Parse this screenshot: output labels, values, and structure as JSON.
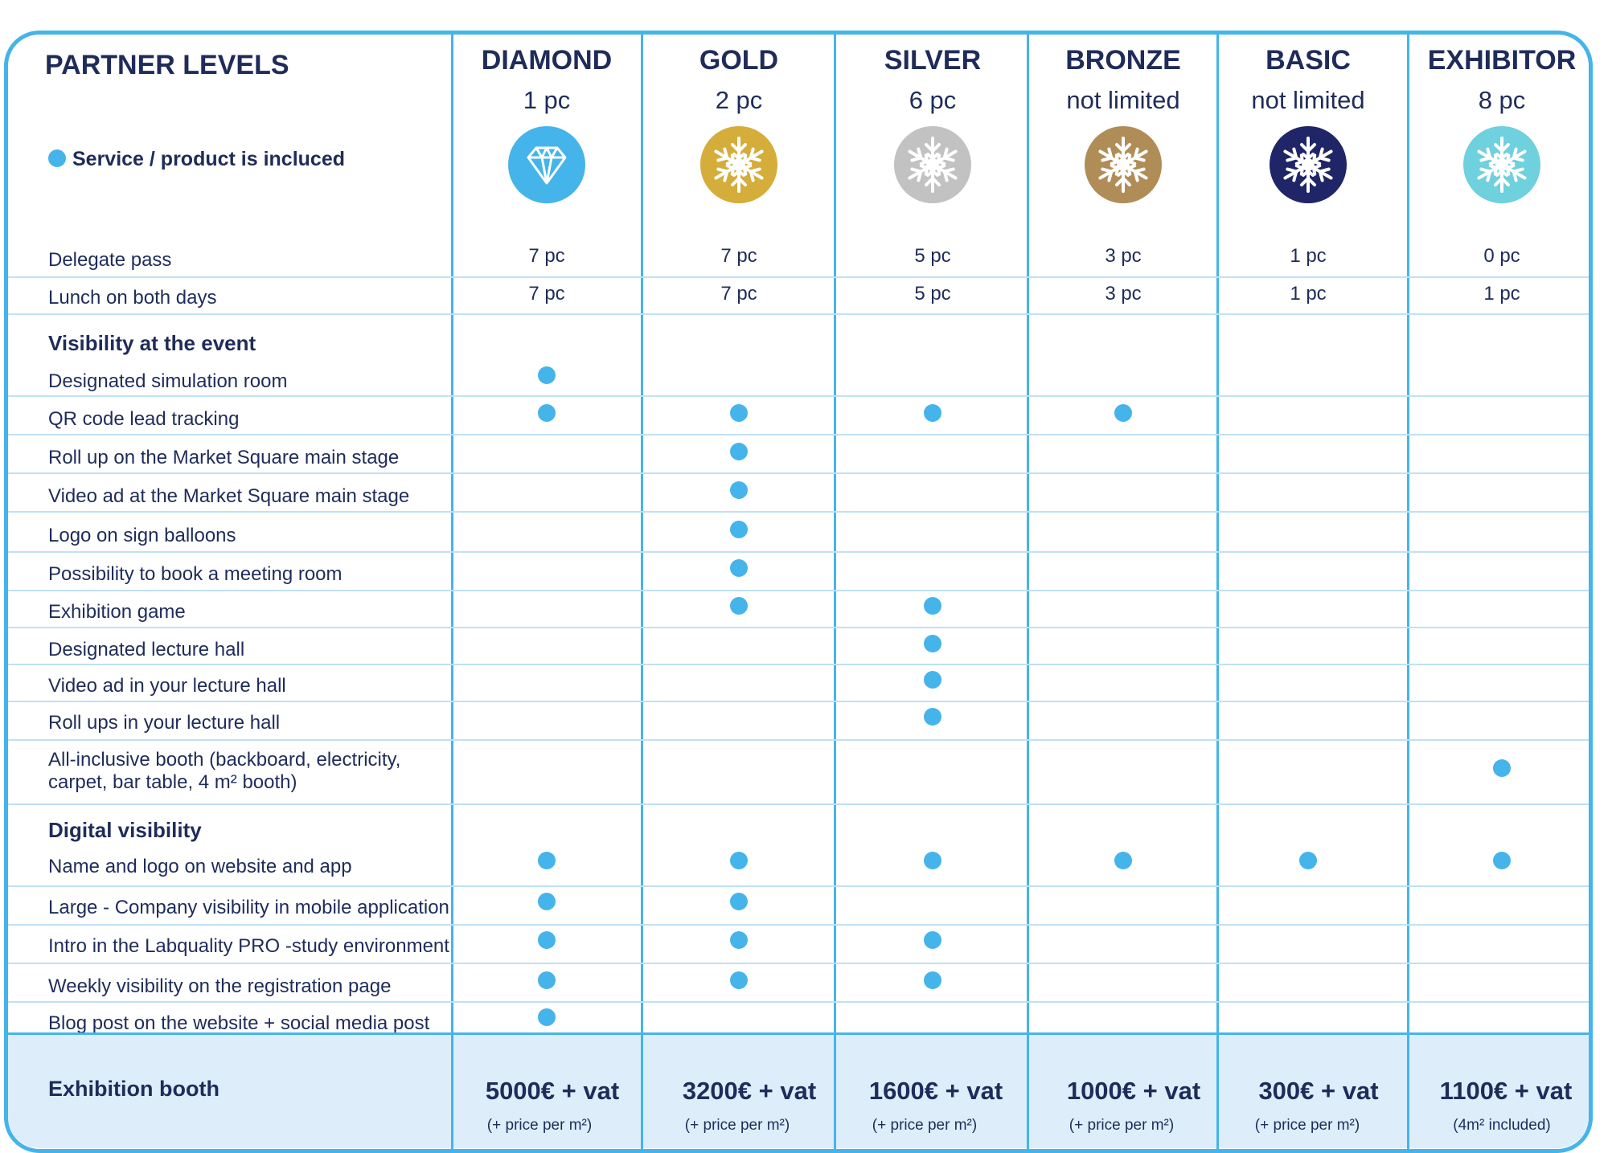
{
  "title": "PARTNER LEVELS",
  "legend": "Service / product is incluced",
  "colors": {
    "accent": "#45b4ea",
    "text": "#1f2c5a",
    "booth_bg": "#ddeefa"
  },
  "levels": [
    {
      "name": "DIAMOND",
      "count": "1 pc",
      "icon": "diamond-icon",
      "color": "#45b4ea"
    },
    {
      "name": "GOLD",
      "count": "2 pc",
      "icon": "snowflake-icon",
      "color": "#d4ad3a"
    },
    {
      "name": "SILVER",
      "count": "6 pc",
      "icon": "snowflake-icon",
      "color": "#c2c2c2"
    },
    {
      "name": "BRONZE",
      "count": "not limited",
      "icon": "snowflake-icon",
      "color": "#b08d57"
    },
    {
      "name": "BASIC",
      "count": "not limited",
      "icon": "snowflake-icon",
      "color": "#1f2566"
    },
    {
      "name": "EXHIBITOR",
      "count": "8 pc",
      "icon": "snowflake-icon",
      "color": "#6fd0de"
    }
  ],
  "rows": [
    {
      "label": "Delegate pass",
      "values": [
        "7 pc",
        "7 pc",
        "5 pc",
        "3 pc",
        "1 pc",
        "0 pc"
      ]
    },
    {
      "label": "Lunch on both days",
      "values": [
        "7 pc",
        "7 pc",
        "5 pc",
        "3 pc",
        "1 pc",
        "1 pc"
      ]
    },
    {
      "section": "Visibility at the event"
    },
    {
      "label": "Designated simulation room",
      "included": [
        true,
        false,
        false,
        false,
        false,
        false
      ]
    },
    {
      "label": "QR code lead tracking",
      "included": [
        true,
        true,
        true,
        true,
        false,
        false
      ]
    },
    {
      "label": "Roll up on the Market Square main stage",
      "included": [
        false,
        true,
        false,
        false,
        false,
        false
      ]
    },
    {
      "label": "Video ad at the Market Square main stage",
      "included": [
        false,
        true,
        false,
        false,
        false,
        false
      ]
    },
    {
      "label": "Logo on sign balloons",
      "included": [
        false,
        true,
        false,
        false,
        false,
        false
      ]
    },
    {
      "label": "Possibility to book a meeting room",
      "included": [
        false,
        true,
        false,
        false,
        false,
        false
      ]
    },
    {
      "label": "Exhibition game",
      "included": [
        false,
        true,
        true,
        false,
        false,
        false
      ]
    },
    {
      "label": "Designated lecture hall",
      "included": [
        false,
        false,
        true,
        false,
        false,
        false
      ]
    },
    {
      "label": "Video ad in your lecture hall",
      "included": [
        false,
        false,
        true,
        false,
        false,
        false
      ]
    },
    {
      "label": "Roll ups in your lecture hall",
      "included": [
        false,
        false,
        true,
        false,
        false,
        false
      ]
    },
    {
      "label": "All-inclusive booth (backboard, electricity,",
      "label2": "carpet, bar table, 4 m² booth)",
      "included": [
        false,
        false,
        false,
        false,
        false,
        true
      ]
    },
    {
      "section": "Digital visibility"
    },
    {
      "label": "Name and logo on website and app",
      "included": [
        true,
        true,
        true,
        true,
        true,
        true
      ]
    },
    {
      "label": "Large - Company visibility in mobile application",
      "included": [
        true,
        true,
        false,
        false,
        false,
        false
      ]
    },
    {
      "label": "Intro in the Labquality PRO -study environment",
      "included": [
        true,
        true,
        true,
        false,
        false,
        false
      ]
    },
    {
      "label": "Weekly visibility on the registration page",
      "included": [
        true,
        true,
        true,
        false,
        false,
        false
      ]
    },
    {
      "label": "Blog post on the website + social media post",
      "included": [
        true,
        false,
        false,
        false,
        false,
        false
      ]
    }
  ],
  "booth": {
    "label": "Exhibition booth",
    "prices": [
      {
        "price": "5000€ + vat",
        "note": "(+ price per m²)"
      },
      {
        "price": "3200€ + vat",
        "note": "(+ price per m²)"
      },
      {
        "price": "1600€ + vat",
        "note": "(+ price per m²)"
      },
      {
        "price": "1000€ + vat",
        "note": "(+ price per m²)"
      },
      {
        "price": "300€ + vat",
        "note": "(+ price per m²)"
      },
      {
        "price": "1100€ + vat",
        "note": "(4m² included)"
      }
    ]
  }
}
